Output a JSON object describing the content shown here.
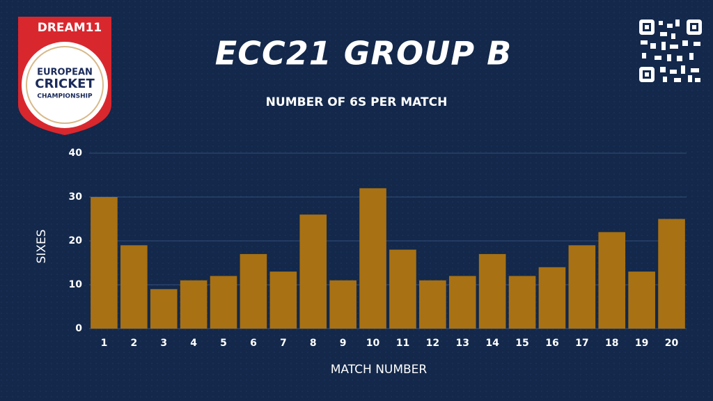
{
  "chart_data": {
    "type": "bar",
    "title": "ECC21 GROUP B",
    "subtitle": "NUMBER OF 6S PER MATCH",
    "logo": {
      "brand": "DREAM11",
      "lines": [
        "EUROPEAN",
        "CRICKET",
        "CHAMPIONSHIP"
      ]
    },
    "x_label": "MATCH NUMBER",
    "y_label": "SIXES",
    "categories": [
      "1",
      "2",
      "3",
      "4",
      "5",
      "6",
      "7",
      "8",
      "9",
      "10",
      "11",
      "12",
      "13",
      "14",
      "15",
      "16",
      "17",
      "18",
      "19",
      "20"
    ],
    "values": [
      30,
      19,
      9,
      11,
      12,
      17,
      13,
      26,
      11,
      32,
      18,
      11,
      12,
      17,
      12,
      14,
      19,
      22,
      13,
      25
    ],
    "color": "#a87113",
    "ylim": [
      0,
      40
    ],
    "yticks": [
      0,
      10,
      20,
      30,
      40
    ],
    "grid": true
  }
}
